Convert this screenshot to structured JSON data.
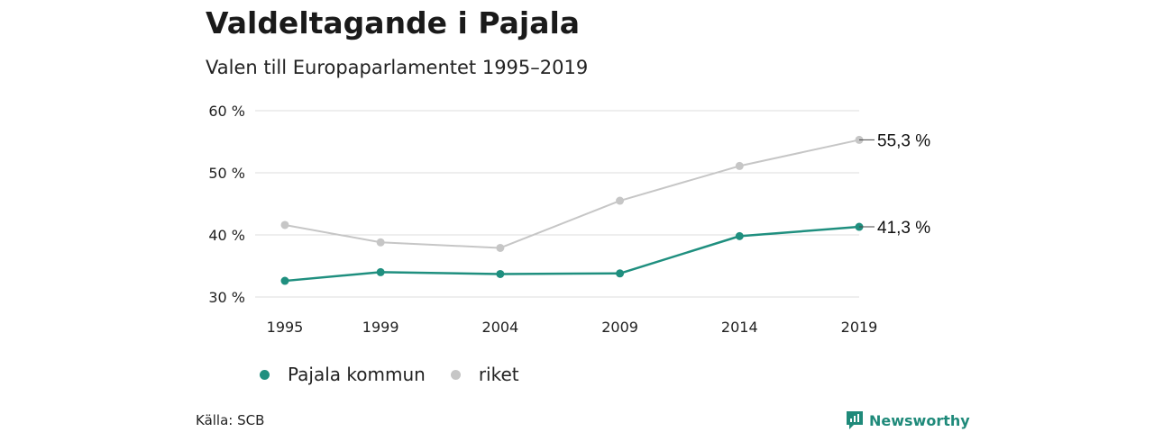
{
  "header": {
    "title": "Valdeltagande i Pajala",
    "subtitle": "Valen till Europaparlamentet 1995–2019"
  },
  "colors": {
    "pajala": "#1f8f7f",
    "riket": "#c6c6c6",
    "grid": "#dcdcdc"
  },
  "chart_data": {
    "type": "line",
    "categories": [
      "1995",
      "1999",
      "2004",
      "2009",
      "2014",
      "2019"
    ],
    "series": [
      {
        "name": "riket",
        "values": [
          41.6,
          38.8,
          37.9,
          45.5,
          51.1,
          55.3
        ],
        "end_label": "55,3 %"
      },
      {
        "name": "Pajala kommun",
        "values": [
          32.6,
          34.0,
          33.7,
          33.8,
          39.8,
          41.3
        ],
        "end_label": "41,3 %"
      }
    ],
    "ylim": [
      30,
      60
    ],
    "yticks": [
      30,
      40,
      50,
      60
    ],
    "ytick_labels": [
      "30 %",
      "40 %",
      "50 %",
      "60 %"
    ],
    "grid": true,
    "legend_position": "bottom-left"
  },
  "legend": {
    "items": [
      {
        "label": "Pajala kommun",
        "color": "#1f8f7f"
      },
      {
        "label": "riket",
        "color": "#c6c6c6"
      }
    ]
  },
  "footer": {
    "source": "Källa: SCB",
    "brand": "Newsworthy",
    "brand_icon": "newsworthy-logo-icon"
  }
}
